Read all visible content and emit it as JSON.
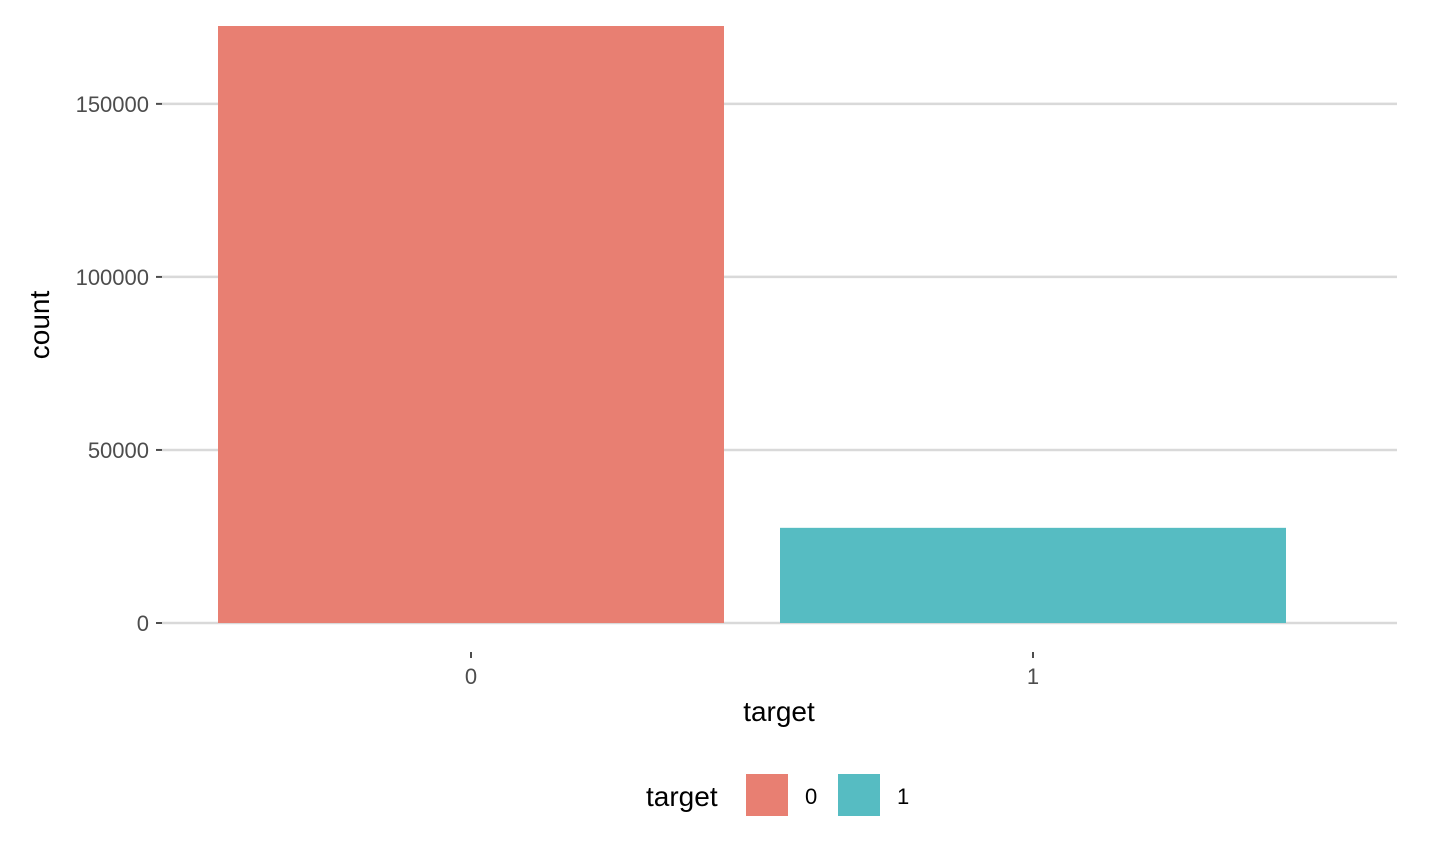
{
  "chart_data": {
    "type": "bar",
    "title": "",
    "xlabel": "target",
    "ylabel": "count",
    "categories": [
      "0",
      "1"
    ],
    "values": [
      172500,
      27500
    ],
    "colors": [
      "#E87F72",
      "#56BCC2"
    ],
    "ylim": [
      0,
      172500
    ],
    "yticks": [
      0,
      50000,
      100000,
      150000
    ],
    "ytick_labels": [
      "0",
      "50000",
      "100000",
      "150000"
    ],
    "grid": "horizontal",
    "legend": {
      "title": "target",
      "position": "bottom",
      "entries": [
        "0",
        "1"
      ]
    }
  },
  "theme": {
    "grid_color": "#D9D9D9",
    "tick_color": "#4d4d4d",
    "background": "#FFFFFF"
  }
}
